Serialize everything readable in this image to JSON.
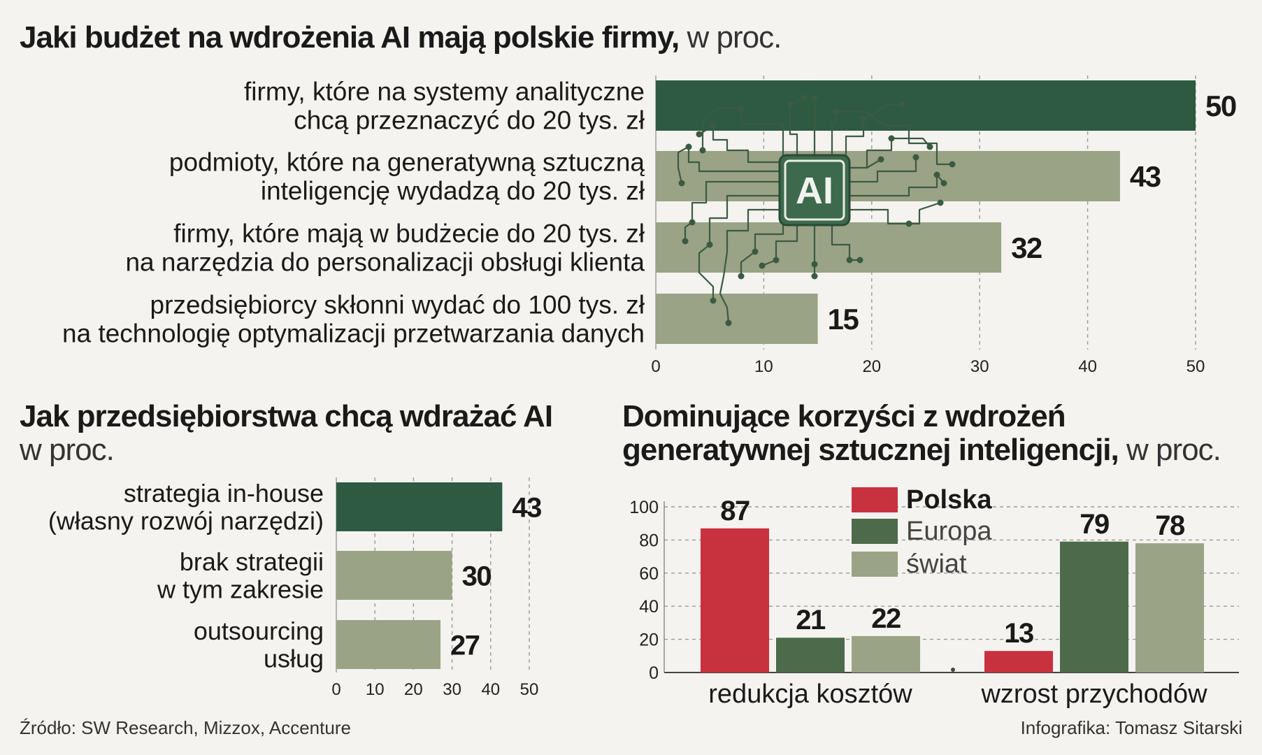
{
  "colors": {
    "dark_green": "#2e5a41",
    "light_green": "#9aa386",
    "mid_green": "#4d6b4a",
    "red": "#c8323f",
    "circuit": "#3b5a42"
  },
  "icons": [
    "ai-chip-brain-icon"
  ],
  "headers": {
    "top_bold": "Jaki budżet na wdrożenia AI mają polskie firmy,",
    "top_light": " w proc.",
    "left_bold": "Jak przedsiębiorstwa chcą wdrażać AI",
    "left_light": "w proc.",
    "right_bold_1": "Dominujące korzyści z wdrożeń",
    "right_bold_2": "generatywnej sztucznej inteligencji,",
    "right_light": " w proc."
  },
  "ai_badge": "AI",
  "chart_data": [
    {
      "type": "bar",
      "orientation": "horizontal",
      "title": "Jaki budżet na wdrożenia AI mają polskie firmy, w proc.",
      "categories": [
        [
          "firmy, które na systemy analityczne",
          "chcą przeznaczyć do 20 tys. zł"
        ],
        [
          "podmioty, które na generatywną sztuczną",
          "inteligencję wydadzą do 20 tys. zł"
        ],
        [
          "firmy, które mają w budżecie do 20 tys. zł",
          "na narzędzia do personalizacji obsługi klienta"
        ],
        [
          "przedsiębiorcy skłonni wydać do 100 tys. zł",
          "na technologię optymalizacji przetwarzania danych"
        ]
      ],
      "values": [
        50,
        43,
        32,
        15
      ],
      "highlight": [
        true,
        false,
        false,
        false
      ],
      "xlim": [
        0,
        50
      ],
      "xticks": [
        0,
        10,
        20,
        30,
        40,
        50
      ],
      "grid": true
    },
    {
      "type": "bar",
      "orientation": "horizontal",
      "title": "Jak przedsiębiorstwa chcą wdrażać AI w proc.",
      "categories": [
        [
          "strategia in-house",
          "(własny rozwój narzędzi)"
        ],
        [
          "brak strategii",
          "w tym zakresie"
        ],
        [
          "outsourcing",
          "usług"
        ]
      ],
      "values": [
        43,
        30,
        27
      ],
      "highlight": [
        true,
        false,
        false
      ],
      "xlim": [
        0,
        50
      ],
      "xticks": [
        0,
        10,
        20,
        30,
        40,
        50
      ],
      "grid": true
    },
    {
      "type": "bar",
      "orientation": "vertical",
      "title": "Dominujące korzyści z wdrożeń generatywnej sztucznej inteligencji, w proc.",
      "categories": [
        "redukcja kosztów",
        "wzrost przychodów"
      ],
      "series": [
        {
          "name": "Polska",
          "values": [
            87,
            13
          ]
        },
        {
          "name": "Europa",
          "values": [
            21,
            79
          ]
        },
        {
          "name": "świat",
          "values": [
            22,
            78
          ]
        }
      ],
      "ylim": [
        0,
        100
      ],
      "yticks": [
        0,
        20,
        40,
        60,
        80,
        100
      ],
      "legend": "top-center",
      "grid": true
    }
  ],
  "footer": {
    "source": "Źródło: SW Research, Mizzox, Accenture",
    "credit": "Infografika: Tomasz Sitarski"
  }
}
